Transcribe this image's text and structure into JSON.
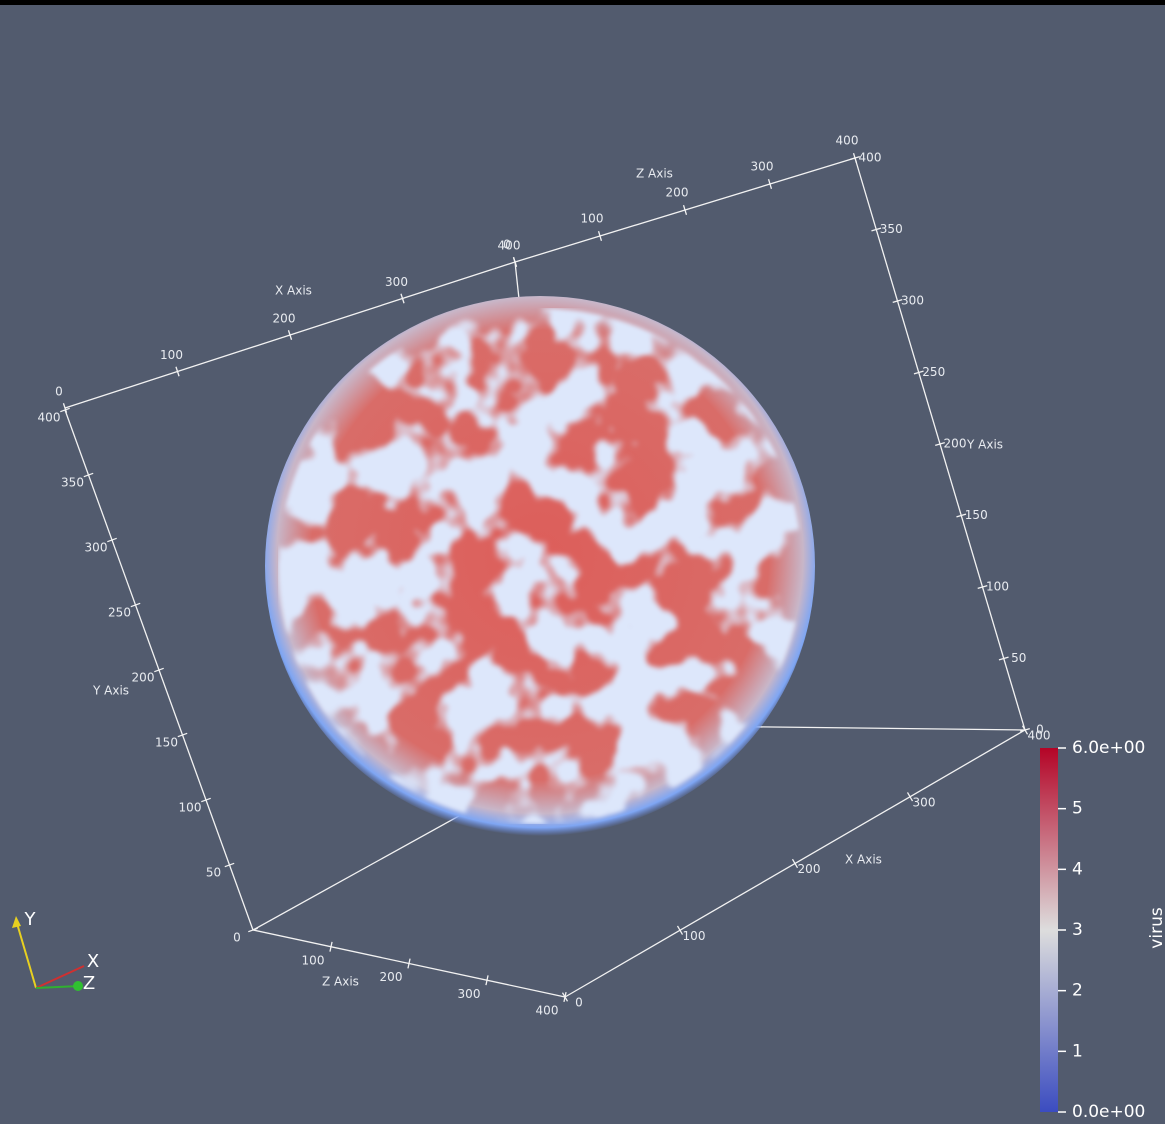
{
  "axes_grid": {
    "axes": [
      {
        "title": "X Axis",
        "range": [
          0,
          400
        ],
        "ticks": [
          0,
          100,
          200,
          300,
          400
        ]
      },
      {
        "title": "Z Axis",
        "range": [
          0,
          400
        ],
        "ticks": [
          0,
          100,
          200,
          300,
          400
        ]
      },
      {
        "title": "Y Axis",
        "range": [
          0,
          400
        ],
        "ticks": [
          0,
          50,
          100,
          150,
          200,
          250,
          300,
          350,
          400
        ]
      },
      {
        "title": "Z Axis",
        "range": [
          0,
          400
        ],
        "ticks": [
          100,
          200,
          300,
          400
        ]
      },
      {
        "title": "X Axis",
        "range": [
          0,
          400
        ],
        "ticks": [
          0,
          100,
          200,
          300,
          400
        ]
      },
      {
        "title": "Y Axis",
        "range": [
          0,
          400
        ],
        "ticks": [
          0,
          50,
          100,
          150,
          200,
          250,
          300,
          350,
          400
        ]
      }
    ]
  },
  "colorbar": {
    "title": "virus",
    "range": [
      0,
      6
    ],
    "colormap": [
      "#3b4cc0",
      "#dddddd",
      "#b40426"
    ],
    "ticks": [
      {
        "value": 6,
        "label": "6.0e+00"
      },
      5,
      4,
      3,
      2,
      1,
      {
        "value": 0,
        "label": "0.0e+00"
      }
    ]
  },
  "orientation_axes": {
    "labels": [
      "X",
      "Y",
      "Z"
    ]
  }
}
